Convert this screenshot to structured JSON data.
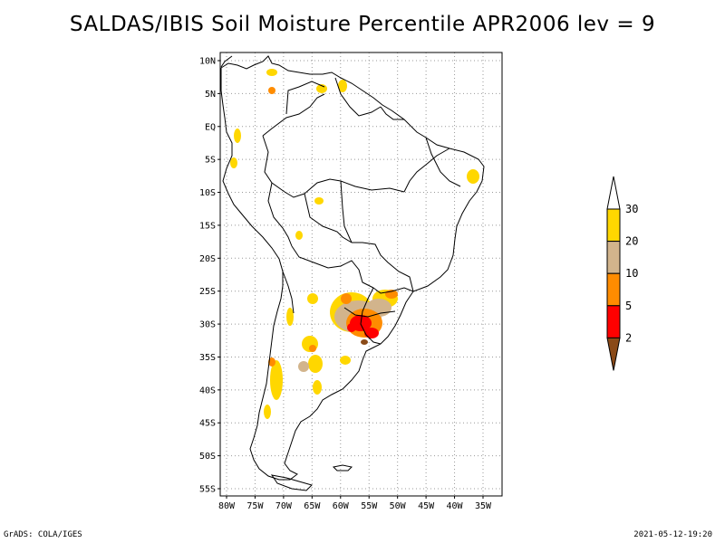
{
  "title": "SALDAS/IBIS Soil Moisture Percentile APR2006 lev = 9",
  "lat_labels": [
    "10N",
    "5N",
    "EQ",
    "5S",
    "10S",
    "15S",
    "20S",
    "25S",
    "30S",
    "35S",
    "40S",
    "45S",
    "50S",
    "55S"
  ],
  "lon_labels": [
    "80W",
    "75W",
    "70W",
    "65W",
    "60W",
    "55W",
    "50W",
    "45W",
    "40W",
    "35W"
  ],
  "colorbar": {
    "labels": [
      "2",
      "5",
      "10",
      "20",
      "30"
    ],
    "colors": {
      "below_2": "#8a4a18",
      "2_5": "#ff0000",
      "5_10": "#ff8c00",
      "10_20": "#d2b48c",
      "20_30": "#ffd700",
      "above_30": "#ffffff"
    }
  },
  "footer": {
    "left": "GrADS: COLA/IGES",
    "right": "2021-05-12-19:20"
  }
}
